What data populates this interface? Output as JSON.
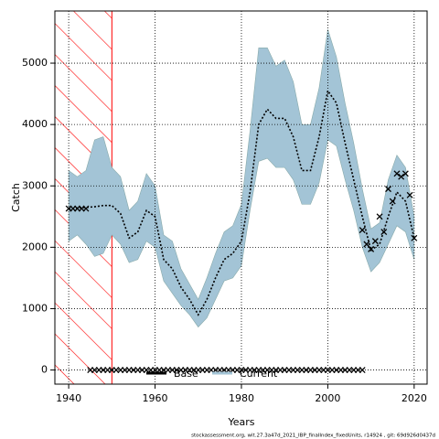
{
  "chart_data": {
    "type": "line",
    "x_label": "Years",
    "y_label": "Catch",
    "footer": "stockassessment.org, wit.27.3a47d_2021_IBP_finalIndex_fixedUnits, r14924 , git: 69d926d0437d",
    "xlim": [
      1936.8,
      2023
    ],
    "ylim": [
      -230,
      5850
    ],
    "xticks": [
      1940,
      1960,
      1980,
      2000,
      2020
    ],
    "yticks": [
      0,
      1000,
      2000,
      3000,
      4000,
      5000
    ],
    "grid": true,
    "hatch_region": {
      "x": [
        1936.8,
        1950
      ],
      "color": "#ff0000"
    },
    "band": {
      "color": "#a3c4d6",
      "x": [
        1940,
        1942,
        1944,
        1946,
        1948,
        1950,
        1952,
        1954,
        1956,
        1958,
        1960,
        1962,
        1964,
        1966,
        1968,
        1970,
        1972,
        1974,
        1976,
        1978,
        1980,
        1982,
        1984,
        1986,
        1988,
        1990,
        1992,
        1994,
        1996,
        1998,
        2000,
        2002,
        2004,
        2006,
        2008,
        2010,
        2012,
        2014,
        2016,
        2018,
        2020
      ],
      "upper": [
        3250,
        3150,
        3250,
        3750,
        3800,
        3300,
        3150,
        2600,
        2750,
        3200,
        3000,
        2200,
        2100,
        1650,
        1400,
        1150,
        1500,
        1900,
        2250,
        2350,
        2700,
        3900,
        5250,
        5250,
        4950,
        5050,
        4700,
        4000,
        4000,
        4600,
        5550,
        5100,
        4350,
        3700,
        2950,
        2300,
        2400,
        3100,
        3500,
        3300,
        2500
      ],
      "lower": [
        2100,
        2200,
        2050,
        1850,
        1900,
        2200,
        2050,
        1750,
        1800,
        2100,
        2000,
        1450,
        1250,
        1050,
        900,
        700,
        850,
        1150,
        1450,
        1500,
        1700,
        2600,
        3400,
        3450,
        3300,
        3300,
        3100,
        2700,
        2700,
        3050,
        3750,
        3650,
        3100,
        2600,
        2000,
        1600,
        1750,
        2050,
        2350,
        2250,
        1800
      ]
    },
    "estimate": {
      "color": "#000000",
      "x": [
        1940,
        1942,
        1944,
        1946,
        1948,
        1950,
        1952,
        1954,
        1956,
        1958,
        1960,
        1962,
        1964,
        1966,
        1968,
        1970,
        1972,
        1974,
        1976,
        1978,
        1980,
        1982,
        1984,
        1986,
        1988,
        1990,
        1992,
        1994,
        1996,
        1998,
        2000,
        2002,
        2004,
        2006,
        2008,
        2010,
        2012,
        2014,
        2016,
        2018,
        2020
      ],
      "values": [
        2620,
        2640,
        2650,
        2660,
        2680,
        2680,
        2550,
        2150,
        2250,
        2600,
        2500,
        1800,
        1650,
        1350,
        1150,
        900,
        1150,
        1500,
        1800,
        1900,
        2100,
        2900,
        4000,
        4250,
        4100,
        4100,
        3800,
        3250,
        3250,
        3800,
        4550,
        4350,
        3700,
        3100,
        2500,
        1950,
        2050,
        2500,
        2900,
        2750,
        2150
      ]
    },
    "observations": {
      "color": "#000000",
      "x": [
        1940,
        1941,
        1942,
        1943,
        1944,
        2008,
        2009,
        2010,
        2011,
        2012,
        2013,
        2014,
        2015,
        2016,
        2017,
        2018,
        2019,
        2020
      ],
      "values": [
        2630,
        2630,
        2630,
        2630,
        2630,
        2280,
        2050,
        1970,
        2100,
        2500,
        2250,
        2950,
        2750,
        3200,
        3150,
        3200,
        2850,
        2150
      ]
    },
    "zero_catch": {
      "color": "#000000",
      "x": [
        1945,
        1946,
        1947,
        1948,
        1949,
        1950,
        1951,
        1952,
        1953,
        1954,
        1955,
        1956,
        1957,
        1958,
        1959,
        1960,
        1961,
        1962,
        1963,
        1964,
        1965,
        1966,
        1967,
        1968,
        1969,
        1970,
        1971,
        1972,
        1973,
        1974,
        1975,
        1976,
        1977,
        1978,
        1979,
        1980,
        1981,
        1982,
        1983,
        1984,
        1985,
        1986,
        1987,
        1988,
        1989,
        1990,
        1991,
        1992,
        1993,
        1994,
        1995,
        1996,
        1997,
        1998,
        1999,
        2000,
        2001,
        2002,
        2003,
        2004,
        2005,
        2006,
        2007,
        2008
      ],
      "values": [
        0,
        0,
        0,
        0,
        0,
        0,
        0,
        0,
        0,
        0,
        0,
        0,
        0,
        0,
        0,
        0,
        0,
        0,
        0,
        0,
        0,
        0,
        0,
        0,
        0,
        0,
        0,
        0,
        0,
        0,
        0,
        0,
        0,
        0,
        0,
        0,
        0,
        0,
        0,
        0,
        0,
        0,
        0,
        0,
        0,
        0,
        0,
        0,
        0,
        0,
        0,
        0,
        0,
        0,
        0,
        0,
        0,
        0,
        0,
        0,
        0,
        0,
        0,
        0
      ]
    },
    "legend": [
      {
        "name": "Base",
        "color": "#000000"
      },
      {
        "name": "Current",
        "color": "#a3c4d6"
      }
    ]
  }
}
